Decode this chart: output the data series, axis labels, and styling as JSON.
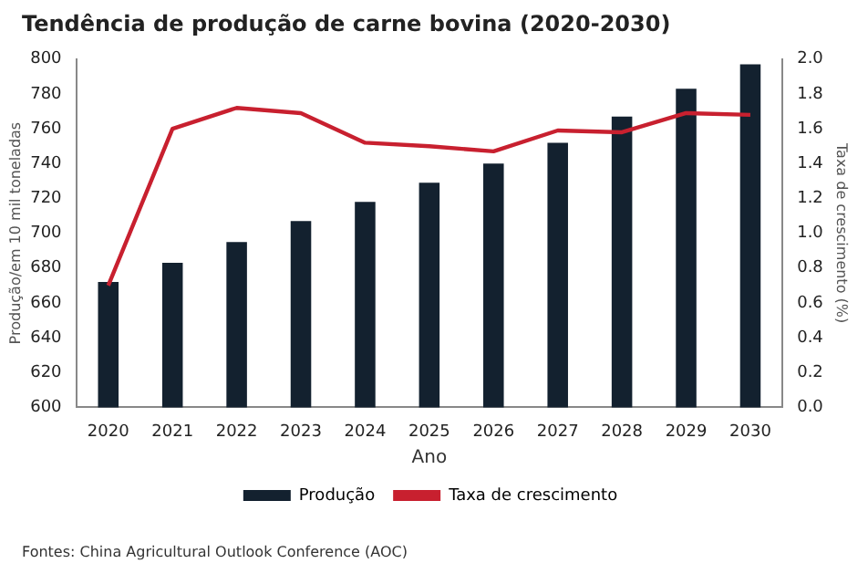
{
  "chart_data": {
    "type": "bar",
    "title": "Tendência de produção de carne bovina (2020-2030)",
    "xlabel": "Ano",
    "ylabel": "Produção/em 10 mil toneladas",
    "y2label": "Taxa de crescimento (%)",
    "categories": [
      "2020",
      "2021",
      "2022",
      "2023",
      "2024",
      "2025",
      "2026",
      "2027",
      "2028",
      "2029",
      "2030"
    ],
    "series": [
      {
        "name": "Produção",
        "color": "#13212f",
        "values": [
          672,
          683,
          695,
          707,
          718,
          729,
          740,
          752,
          767,
          783,
          797
        ]
      },
      {
        "name": "Taxa de crescimento",
        "type": "line",
        "axis": "y2",
        "color": "#c8202f",
        "values": [
          0.7,
          1.6,
          1.72,
          1.69,
          1.52,
          1.5,
          1.47,
          1.59,
          1.58,
          1.69,
          1.68
        ]
      }
    ],
    "ylim": [
      600,
      800
    ],
    "yticks": [
      600,
      620,
      640,
      660,
      680,
      700,
      720,
      740,
      760,
      780,
      800
    ],
    "y2lim": [
      0,
      2
    ],
    "y2ticks": [
      {
        "value": 0,
        "label": "0.0"
      },
      {
        "value": 0.2,
        "label": "0.2"
      },
      {
        "value": 0.4,
        "label": "0.4"
      },
      {
        "value": 0.6,
        "label": "0.6"
      },
      {
        "value": 0.8,
        "label": "0.8"
      },
      {
        "value": 1,
        "label": "1.0"
      },
      {
        "value": 1.2,
        "label": "1.2"
      },
      {
        "value": 1.4,
        "label": "1.4"
      },
      {
        "value": 1.6,
        "label": "1.6"
      },
      {
        "value": 1.8,
        "label": "1.8"
      },
      {
        "value": 2,
        "label": "2.0"
      }
    ],
    "legend": "bottom",
    "grid": false,
    "marker": "none",
    "annotations": [
      "Fontes: China Agricultural Outlook Conference (AOC)"
    ]
  }
}
